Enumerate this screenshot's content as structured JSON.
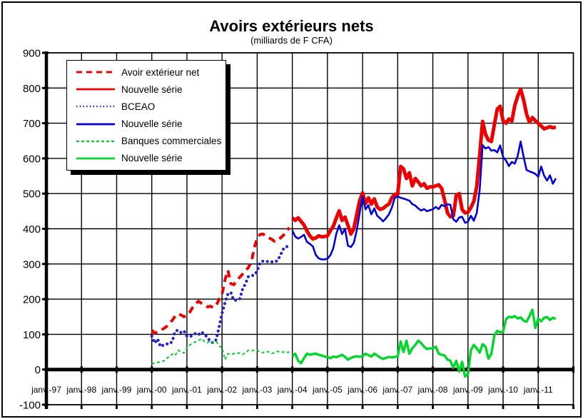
{
  "title": "Avoirs extérieurs  nets",
  "subtitle": "(milliards de F CFA)",
  "chart_data": {
    "type": "line",
    "title": "Avoirs extérieurs nets",
    "subtitle": "(milliards de F CFA)",
    "unit": "milliards de F CFA",
    "ylim": [
      -100,
      900
    ],
    "ytick_step": 100,
    "y_tick_labels": [
      "900",
      "800",
      "700",
      "600",
      "500",
      "400",
      "300",
      "200",
      "100",
      "0",
      "-100"
    ],
    "x_tick_labels": [
      "janv.-97",
      "janv.-98",
      "janv.-99",
      "janv.-00",
      "janv.-01",
      "janv.-02",
      "janv.-03",
      "janv.-04",
      "janv.-05",
      "janv.-06",
      "janv.-07",
      "janv.-08",
      "janv.-09",
      "janv.-10",
      "janv.-11"
    ],
    "x_span_years": [
      "1997-01",
      "2012-01"
    ],
    "grid": true,
    "legend_position": "top-left",
    "series": [
      {
        "name": "Avoir extérieur net",
        "color": "#ee0000",
        "style": "dashed",
        "start": "2000-01",
        "values": [
          112,
          103,
          107,
          112,
          116,
          122,
          130,
          140,
          152,
          158,
          155,
          150,
          153,
          163,
          177,
          188,
          194,
          188,
          183,
          178,
          180,
          176,
          182,
          200,
          214,
          255,
          282,
          244,
          241,
          252,
          262,
          271,
          280,
          290,
          305,
          345,
          374,
          384,
          385,
          378,
          374,
          370,
          364,
          368,
          374,
          382,
          392,
          403
        ]
      },
      {
        "name": "Nouvelle série",
        "color": "#ee0000",
        "style": "solid",
        "start": "2004-01",
        "values": [
          431,
          424,
          431,
          421,
          411,
          394,
          380,
          371,
          374,
          380,
          377,
          378,
          380,
          395,
          407,
          430,
          451,
          424,
          433,
          410,
          385,
          400,
          440,
          480,
          502,
          471,
          488,
          470,
          485,
          462,
          455,
          458,
          465,
          470,
          488,
          498,
          498,
          577,
          570,
          543,
          559,
          522,
          543,
          533,
          522,
          528,
          515,
          519,
          519,
          522,
          525,
          515,
          482,
          445,
          434,
          437,
          495,
          500,
          455,
          445,
          447,
          460,
          478,
          520,
          610,
          705,
          668,
          652,
          648,
          695,
          740,
          748,
          707,
          700,
          712,
          706,
          750,
          777,
          797,
          766,
          726,
          703,
          716,
          707,
          700,
          692,
          684,
          687,
          690,
          687,
          689
        ]
      },
      {
        "name": "BCEAO",
        "color": "#2424cc",
        "style": "dotted",
        "start": "2000-01",
        "values": [
          95,
          75,
          87,
          65,
          70,
          73,
          72,
          80,
          109,
          112,
          105,
          110,
          95,
          93,
          98,
          103,
          99,
          107,
          99,
          92,
          79,
          76,
          85,
          122,
          160,
          190,
          215,
          219,
          197,
          197,
          200,
          228,
          244,
          264,
          267,
          268,
          280,
          305,
          308,
          306,
          308,
          306,
          305,
          310,
          326,
          343,
          350,
          345
        ]
      },
      {
        "name": "Nouvelle série",
        "color": "#0000dd",
        "style": "solid",
        "start": "2004-01",
        "values": [
          395,
          378,
          372,
          377,
          383,
          363,
          357,
          350,
          326,
          316,
          313,
          313,
          315,
          325,
          345,
          385,
          410,
          385,
          400,
          352,
          348,
          360,
          395,
          445,
          492,
          455,
          467,
          441,
          458,
          437,
          430,
          421,
          430,
          441,
          460,
          488,
          492,
          488,
          486,
          483,
          480,
          470,
          466,
          458,
          452,
          456,
          450,
          453,
          455,
          462,
          456,
          468,
          464,
          470,
          468,
          427,
          420,
          432,
          434,
          417,
          420,
          437,
          423,
          445,
          510,
          638,
          628,
          632,
          622,
          624,
          617,
          637,
          604,
          594,
          578,
          590,
          585,
          607,
          648,
          604,
          567,
          563,
          560,
          556,
          548,
          577,
          551,
          537,
          552,
          528,
          543
        ]
      },
      {
        "name": "Banques commerciales",
        "color": "#00cc29",
        "style": "dashed-fine",
        "start": "2000-01",
        "values": [
          17,
          18,
          20,
          22,
          24,
          30,
          38,
          44,
          40,
          55,
          50,
          47,
          60,
          70,
          75,
          79,
          82,
          88,
          79,
          76,
          82,
          76,
          80,
          67,
          62,
          28,
          45,
          43,
          45,
          45,
          47,
          43,
          47,
          55,
          53,
          55,
          55,
          50,
          48,
          52,
          50,
          46,
          48,
          52,
          49,
          50,
          48,
          50
        ]
      },
      {
        "name": "Nouvelle série",
        "color": "#00d829",
        "style": "solid",
        "start": "2004-01",
        "values": [
          38,
          45,
          25,
          18,
          32,
          45,
          42,
          44,
          45,
          42,
          40,
          37,
          36,
          32,
          37,
          35,
          38,
          42,
          36,
          28,
          33,
          36,
          38,
          36,
          38,
          45,
          41,
          37,
          45,
          40,
          34,
          30,
          33,
          36,
          34,
          36,
          37,
          80,
          50,
          82,
          45,
          60,
          70,
          82,
          75,
          65,
          58,
          60,
          60,
          65,
          45,
          42,
          40,
          28,
          25,
          5,
          25,
          -6,
          22,
          -20,
          -13,
          55,
          70,
          60,
          48,
          72,
          65,
          31,
          45,
          96,
          110,
          106,
          107,
          143,
          150,
          148,
          152,
          145,
          148,
          139,
          136,
          152,
          170,
          118,
          145,
          137,
          147,
          149,
          141,
          147,
          144
        ]
      }
    ]
  }
}
